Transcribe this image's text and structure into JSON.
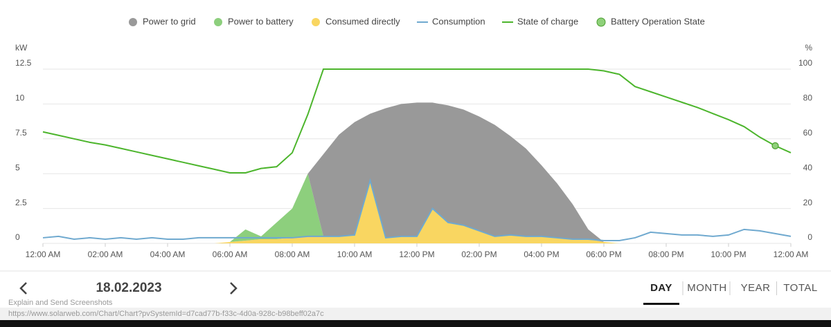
{
  "chart_data": {
    "type": "stacked-area",
    "x": [
      0,
      0.5,
      1,
      1.5,
      2,
      2.5,
      3,
      3.5,
      4,
      4.5,
      5,
      5.5,
      6,
      6.5,
      7,
      7.5,
      8,
      8.5,
      9,
      9.5,
      10,
      10.5,
      11,
      11.5,
      12,
      12.5,
      13,
      13.5,
      14,
      14.5,
      15,
      15.5,
      16,
      16.5,
      17,
      17.5,
      18,
      18.5,
      19,
      19.5,
      20,
      20.5,
      21,
      21.5,
      22,
      22.5,
      23,
      23.5,
      24
    ],
    "xlim": [
      0,
      24
    ],
    "xticks": [
      {
        "value": 0,
        "label": "12:00 AM"
      },
      {
        "value": 2,
        "label": "02:00 AM"
      },
      {
        "value": 4,
        "label": "04:00 AM"
      },
      {
        "value": 6,
        "label": "06:00 AM"
      },
      {
        "value": 8,
        "label": "08:00 AM"
      },
      {
        "value": 10,
        "label": "10:00 AM"
      },
      {
        "value": 12,
        "label": "12:00 PM"
      },
      {
        "value": 14,
        "label": "02:00 PM"
      },
      {
        "value": 16,
        "label": "04:00 PM"
      },
      {
        "value": 18,
        "label": "06:00 PM"
      },
      {
        "value": 20,
        "label": "08:00 PM"
      },
      {
        "value": 22,
        "label": "10:00 PM"
      },
      {
        "value": 24,
        "label": "12:00 AM"
      }
    ],
    "y_label": "kW",
    "ylim": [
      0,
      12.5
    ],
    "yticks": [
      0,
      2.5,
      5,
      7.5,
      10,
      12.5
    ],
    "y2_label": "%",
    "y2lim": [
      0,
      100
    ],
    "y2ticks": [
      0,
      20,
      40,
      60,
      80,
      100
    ],
    "grid": true,
    "series": [
      {
        "name": "Consumed directly",
        "type": "area",
        "color": "#f9d661",
        "values": [
          0,
          0,
          0,
          0,
          0,
          0,
          0,
          0,
          0,
          0,
          0,
          0,
          0.1,
          0.2,
          0.3,
          0.3,
          0.4,
          0.5,
          0.5,
          0.5,
          0.6,
          4.5,
          0.4,
          0.5,
          0.5,
          2.5,
          1.5,
          1.3,
          0.9,
          0.5,
          0.6,
          0.5,
          0.5,
          0.4,
          0.3,
          0.3,
          0.1,
          0,
          0,
          0,
          0,
          0,
          0,
          0,
          0,
          0,
          0,
          0,
          0
        ]
      },
      {
        "name": "Power to battery",
        "type": "area",
        "color": "#8dcf7d",
        "values": [
          0,
          0,
          0,
          0,
          0,
          0,
          0,
          0,
          0,
          0,
          0,
          0,
          0,
          0.8,
          0.2,
          1.2,
          2.1,
          4.5,
          0,
          0,
          0,
          0,
          0,
          0,
          0,
          0,
          0,
          0,
          0,
          0,
          0,
          0,
          0,
          0,
          0,
          0,
          0,
          0,
          0,
          0,
          0,
          0,
          0,
          0,
          0,
          0,
          0,
          0,
          0
        ]
      },
      {
        "name": "Power to grid",
        "type": "area",
        "color": "#999999",
        "values": [
          0,
          0,
          0,
          0,
          0,
          0,
          0,
          0,
          0,
          0,
          0,
          0,
          0,
          0,
          0,
          0,
          0,
          0,
          5.9,
          7.3,
          8.1,
          4.8,
          9.3,
          9.5,
          9.6,
          7.6,
          8.4,
          8.3,
          8.2,
          8.0,
          7.1,
          6.3,
          5.1,
          3.9,
          2.5,
          0.7,
          0,
          0,
          0,
          0,
          0,
          0,
          0,
          0,
          0,
          0,
          0,
          0,
          0
        ]
      },
      {
        "name": "Consumption",
        "type": "line",
        "color": "#6fa9cf",
        "values": [
          0.4,
          0.5,
          0.3,
          0.4,
          0.3,
          0.4,
          0.3,
          0.4,
          0.3,
          0.3,
          0.4,
          0.4,
          0.4,
          0.4,
          0.4,
          0.4,
          0.4,
          0.5,
          0.5,
          0.5,
          0.6,
          4.5,
          0.4,
          0.5,
          0.5,
          2.5,
          1.5,
          1.3,
          0.9,
          0.5,
          0.6,
          0.5,
          0.5,
          0.4,
          0.3,
          0.3,
          0.2,
          0.2,
          0.4,
          0.8,
          0.7,
          0.6,
          0.6,
          0.5,
          0.6,
          1.0,
          0.9,
          0.7,
          0.5
        ]
      },
      {
        "name": "State of charge",
        "type": "line",
        "axis": "y2",
        "color": "#4cb52c",
        "values": [
          64,
          62,
          60,
          58,
          56.5,
          54.5,
          52.5,
          50.5,
          48.5,
          46.5,
          44.5,
          42.5,
          40.5,
          40.5,
          43,
          44,
          52,
          74,
          100,
          100,
          100,
          100,
          100,
          100,
          100,
          100,
          100,
          100,
          100,
          100,
          100,
          100,
          100,
          100,
          100,
          100,
          99,
          97,
          90,
          87,
          84,
          81,
          78,
          74.5,
          71,
          67,
          61,
          56,
          52
        ]
      },
      {
        "name": "Battery Operation State",
        "type": "point",
        "axis": "y2",
        "color": "#8fd17a",
        "edge_color": "#4a9e2f",
        "values": [
          null,
          null,
          null,
          null,
          null,
          null,
          null,
          null,
          null,
          null,
          null,
          null,
          null,
          null,
          null,
          null,
          null,
          null,
          null,
          null,
          null,
          null,
          null,
          null,
          null,
          null,
          null,
          null,
          null,
          null,
          null,
          null,
          null,
          null,
          null,
          null,
          null,
          null,
          null,
          null,
          null,
          null,
          null,
          null,
          null,
          null,
          null,
          56,
          null
        ]
      }
    ]
  },
  "navigation": {
    "date": "18.02.2023",
    "tabs": [
      "DAY",
      "MONTH",
      "YEAR",
      "TOTAL"
    ],
    "active_tab": 0
  },
  "overlay": {
    "button": "Explain and Send Screenshots",
    "url": "https://www.solarweb.com/Chart/Chart?pvSystemId=d7cad77b-f33c-4d0a-928c-b98beff02a7c"
  }
}
